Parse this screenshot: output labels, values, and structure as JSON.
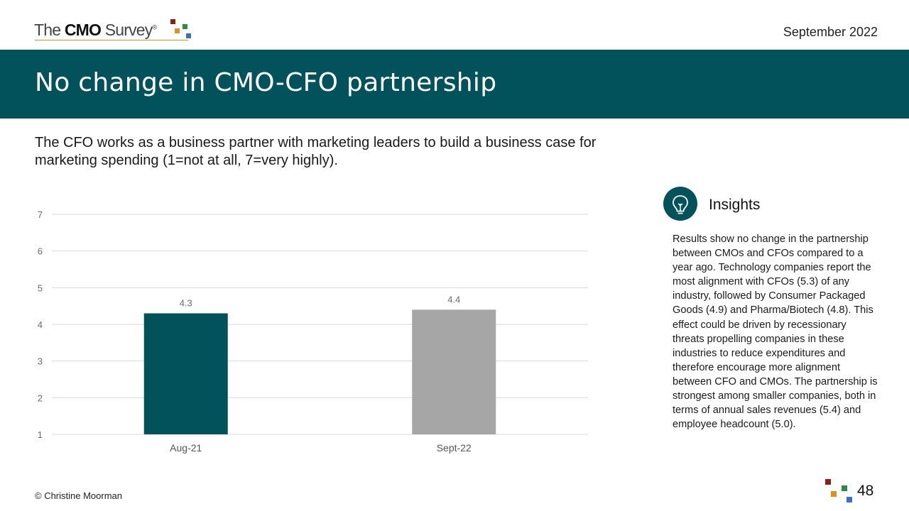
{
  "header": {
    "logo_pre": "The",
    "logo_bold": "CMO",
    "logo_post": "Survey",
    "logo_mark": "®",
    "date": "September 2022"
  },
  "title": "No change in CMO-CFO partnership",
  "subtitle": "The CFO works as a business partner with marketing leaders to build a business case for marketing spending (1=not at all, 7=very highly).",
  "chart_data": {
    "type": "bar",
    "categories": [
      "Aug-21",
      "Sept-22"
    ],
    "values": [
      4.3,
      4.4
    ],
    "data_labels": [
      "4.3",
      "4.4"
    ],
    "bar_colors": [
      "#02525b",
      "#a6a6a6"
    ],
    "yticks": [
      "1",
      "2",
      "3",
      "4",
      "5",
      "6",
      "7"
    ],
    "ylim": [
      1,
      7
    ],
    "grid": true,
    "title": "",
    "xlabel": "",
    "ylabel": ""
  },
  "insights": {
    "icon": "lightbulb-icon",
    "title": "Insights",
    "body": "Results show no change in the partnership between CMOs and CFOs compared to a year ago. Technology companies report the most alignment with CFOs (5.3) of any industry, followed by Consumer Packaged Goods (4.9) and Pharma/Biotech (4.8). This effect could be driven by recessionary threats propelling companies in these industries to reduce expenditures and therefore encourage more alignment between CFO and CMOs. The partnership is strongest among smaller companies, both in terms of annual sales revenues (5.4) and employee headcount (5.0)."
  },
  "footer": {
    "copyright": "© Christine Moorman",
    "page_number": "48"
  },
  "colors": {
    "brand_teal": "#02525b",
    "bar_gray": "#a6a6a6",
    "logo_red": "#8b1f1a",
    "logo_orange": "#e0901f",
    "logo_green": "#2d8a45",
    "logo_blue": "#3b73b9"
  }
}
